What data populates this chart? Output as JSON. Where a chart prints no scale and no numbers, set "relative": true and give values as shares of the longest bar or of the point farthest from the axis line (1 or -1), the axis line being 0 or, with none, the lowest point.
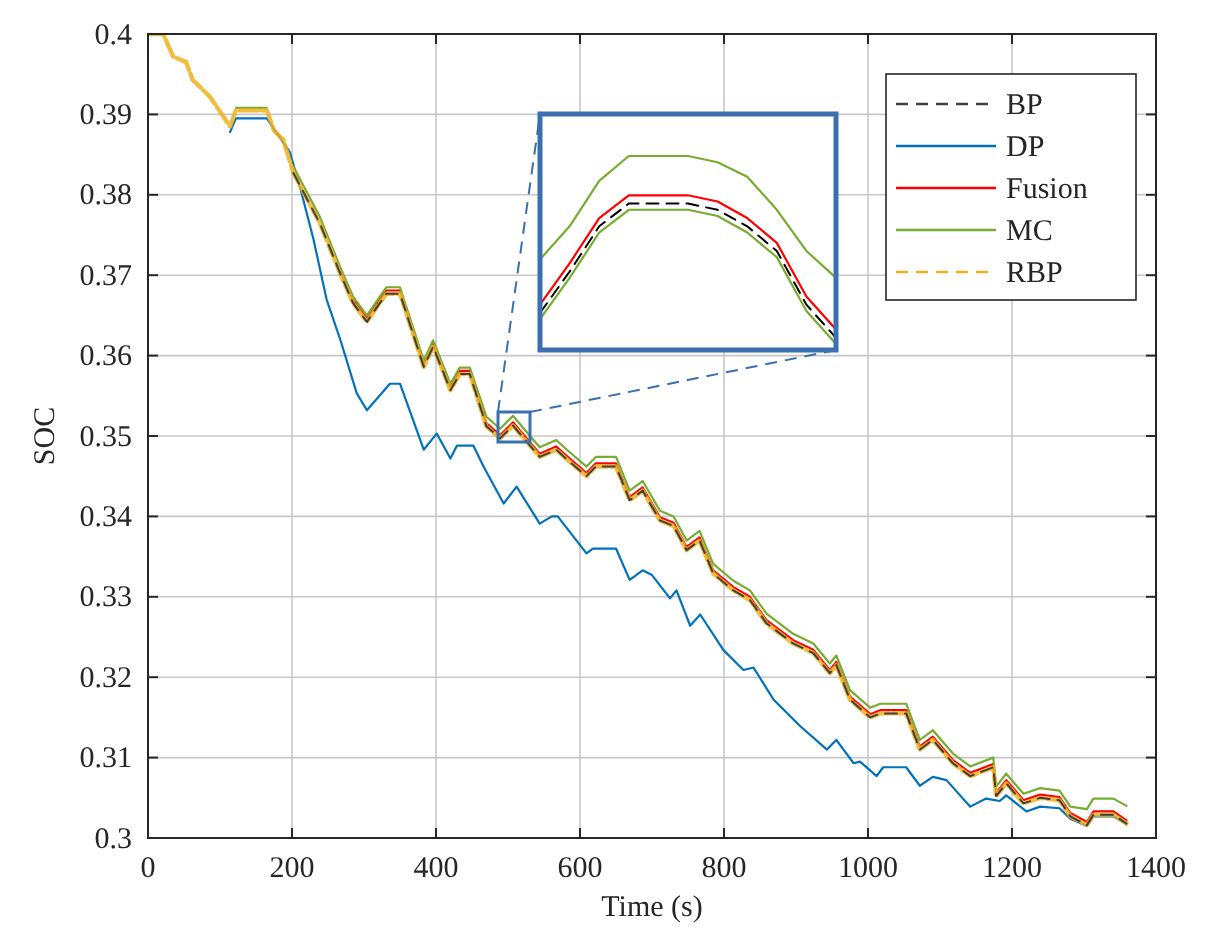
{
  "chart_data": [
    {
      "type": "line",
      "xlabel": "Time (s)",
      "ylabel": "SOC",
      "xlim": [
        0,
        1400
      ],
      "ylim": [
        0.3,
        0.4
      ],
      "xticks": [
        0,
        200,
        400,
        600,
        800,
        1000,
        1200,
        1400
      ],
      "yticks": [
        0.3,
        0.31,
        0.32,
        0.33,
        0.34,
        0.35,
        0.36,
        0.37,
        0.38,
        0.39,
        0.4
      ],
      "grid": true,
      "legend": "top right",
      "x": [
        0,
        21,
        35,
        53,
        62,
        86,
        114,
        122,
        165,
        175,
        188,
        202,
        239,
        267,
        285,
        304,
        331,
        350,
        383,
        396,
        420,
        433,
        447,
        470,
        489,
        507,
        526,
        544,
        567,
        583,
        609,
        622,
        650,
        669,
        687,
        711,
        730,
        748,
        766,
        785,
        813,
        836,
        859,
        896,
        924,
        947,
        956,
        975,
        1003,
        1017,
        1053,
        1072,
        1090,
        1118,
        1142,
        1174,
        1178,
        1192,
        1216,
        1239,
        1266,
        1281,
        1304,
        1313,
        1341,
        1359
      ],
      "series": [
        {
          "name": "BP",
          "color": "#404040",
          "line_style": "dashed",
          "values": [
            null,
            null,
            null,
            null,
            null,
            null,
            null,
            null,
            null,
            null,
            null,
            0.3827,
            0.3764,
            0.3702,
            0.3665,
            0.3642,
            0.3677,
            0.3677,
            0.3586,
            0.3611,
            0.3557,
            0.3577,
            0.3577,
            0.3512,
            0.3497,
            0.3513,
            0.3493,
            0.3474,
            0.3483,
            0.347,
            0.345,
            0.3462,
            0.3462,
            0.342,
            0.3432,
            0.3395,
            0.3388,
            0.3358,
            0.337,
            0.3329,
            0.3308,
            0.3296,
            0.3267,
            0.3242,
            0.323,
            0.3205,
            0.3215,
            0.3172,
            0.315,
            0.3155,
            0.3155,
            0.311,
            0.3122,
            0.3093,
            0.3077,
            0.3088,
            0.3052,
            0.3068,
            0.3043,
            0.305,
            0.3047,
            0.3027,
            0.3016,
            0.3029,
            0.3029,
            0.3018
          ]
        },
        {
          "name": "DP",
          "color": "#0072bd",
          "line_style": "solid",
          "x": [
            114,
            122,
            165,
            197,
            211,
            230,
            248,
            267,
            290,
            304,
            336,
            350,
            383,
            401,
            420,
            429,
            452,
            466,
            494,
            512,
            544,
            561,
            569,
            609,
            618,
            650,
            669,
            687,
            700,
            725,
            734,
            753,
            767,
            799,
            827,
            841,
            869,
            906,
            943,
            956,
            980,
            989,
            1012,
            1021,
            1053,
            1072,
            1090,
            1109,
            1142,
            1164,
            1183,
            1192,
            1220,
            1239,
            1266,
            1281,
            1304,
            1313,
            1341,
            1359
          ],
          "values": [
            0.3878,
            0.3895,
            0.3895,
            0.3853,
            0.381,
            0.3744,
            0.367,
            0.362,
            0.3553,
            0.3532,
            0.3565,
            0.3565,
            0.3483,
            0.3503,
            0.3472,
            0.3488,
            0.3488,
            0.3462,
            0.3416,
            0.3437,
            0.3391,
            0.34,
            0.34,
            0.3354,
            0.336,
            0.336,
            0.3321,
            0.3333,
            0.3327,
            0.3298,
            0.3308,
            0.3264,
            0.3278,
            0.3234,
            0.3209,
            0.3212,
            0.3172,
            0.3139,
            0.311,
            0.3122,
            0.3093,
            0.3095,
            0.3077,
            0.3088,
            0.3088,
            0.3065,
            0.3076,
            0.3072,
            0.3039,
            0.3049,
            0.3046,
            0.3053,
            0.3033,
            0.3039,
            0.3037,
            0.3024,
            0.3015,
            0.3027,
            0.3027,
            0.3017
          ]
        },
        {
          "name": "Fusion",
          "color": "#ff0000",
          "line_style": "solid",
          "values": [
            null,
            null,
            null,
            null,
            null,
            null,
            null,
            null,
            null,
            null,
            null,
            null,
            null,
            0.3706,
            0.3669,
            0.3646,
            0.3681,
            0.3681,
            0.359,
            0.3615,
            0.3561,
            0.3581,
            0.3581,
            0.3516,
            0.3501,
            0.3517,
            0.3497,
            0.3478,
            0.3487,
            0.3474,
            0.3454,
            0.3466,
            0.3466,
            0.3424,
            0.3436,
            0.3399,
            0.3392,
            0.3362,
            0.3374,
            0.3333,
            0.3312,
            0.33,
            0.3271,
            0.3246,
            0.3234,
            0.3209,
            0.3219,
            0.3176,
            0.3154,
            0.3159,
            0.3159,
            0.3114,
            0.3126,
            0.3097,
            0.3081,
            0.3092,
            0.3056,
            0.3072,
            0.3047,
            0.3054,
            0.3051,
            0.3031,
            0.302,
            0.3033,
            0.3033,
            0.3022
          ]
        },
        {
          "name": "MC",
          "color": "#77ac30",
          "line_style": "solid",
          "values": [
            null,
            null,
            null,
            null,
            null,
            null,
            null,
            0.3908,
            0.3908,
            null,
            null,
            0.3835,
            0.3772,
            0.371,
            0.3673,
            0.365,
            0.3685,
            0.3685,
            0.3594,
            0.3619,
            0.3565,
            0.3585,
            0.3585,
            0.3524,
            0.3509,
            0.3525,
            0.3505,
            0.3486,
            0.3495,
            0.3482,
            0.3462,
            0.3474,
            0.3474,
            0.3432,
            0.3444,
            0.3407,
            0.34,
            0.337,
            0.3382,
            0.3341,
            0.332,
            0.3308,
            0.3279,
            0.3254,
            0.3242,
            0.3217,
            0.3227,
            0.3184,
            0.3162,
            0.3167,
            0.3167,
            0.3122,
            0.3134,
            0.3105,
            0.3089,
            0.31,
            0.3064,
            0.308,
            0.3055,
            0.3062,
            0.3059,
            0.3039,
            0.3036,
            0.3049,
            0.3049,
            0.304
          ]
        },
        {
          "name": "RBP",
          "color": "#edb120",
          "line_style": "dashed",
          "values": [
            0.4,
            0.4,
            0.3972,
            0.3965,
            0.3943,
            0.3922,
            0.3885,
            0.3905,
            0.3905,
            0.388,
            0.3868,
            0.3827,
            0.3764,
            0.3702,
            0.3665,
            0.3642,
            0.3677,
            0.3677,
            0.3586,
            0.3611,
            0.3557,
            0.3577,
            0.3577,
            0.3512,
            0.3497,
            0.3513,
            0.3493,
            0.3474,
            0.3483,
            0.347,
            0.345,
            0.3462,
            0.3462,
            0.342,
            0.3432,
            0.3395,
            0.3388,
            0.3358,
            0.337,
            0.3329,
            0.3308,
            0.3296,
            0.3267,
            0.3242,
            0.323,
            0.3205,
            0.3215,
            0.3172,
            0.315,
            0.3155,
            0.3155,
            0.311,
            0.3122,
            0.3093,
            0.3077,
            0.3088,
            0.3052,
            0.3068,
            0.3043,
            0.305,
            0.3047,
            0.3027,
            0.3016,
            0.3029,
            0.3029,
            0.3018
          ]
        }
      ]
    },
    {
      "type": "line",
      "relative": true,
      "categories": [
        null,
        null,
        null,
        null,
        null,
        null,
        null,
        null,
        null,
        null,
        null
      ],
      "series": [
        {
          "color": "#77ac30",
          "line_style": "solid",
          "values": [
            0.45,
            0.626,
            0.868,
            1,
            1,
            1,
            0.967,
            0.89,
            0.714,
            0.495,
            0.352
          ]
        },
        {
          "color": "#ff0000",
          "line_style": "solid",
          "values": [
            0.209,
            0.429,
            0.67,
            0.791,
            0.791,
            0.791,
            0.758,
            0.67,
            0.538,
            0.253,
            0.077
          ]
        },
        {
          "color": "#77ac30",
          "line_style": "solid",
          "values": [
            0.132,
            0.352,
            0.593,
            0.714,
            0.714,
            0.714,
            0.681,
            0.593,
            0.462,
            0.176,
            0
          ]
        },
        {
          "color": "#000000",
          "line_style": "dashed",
          "values": [
            0.165,
            0.385,
            0.626,
            0.747,
            0.747,
            0.747,
            0.714,
            0.626,
            0.495,
            0.209,
            0.033
          ]
        }
      ]
    }
  ]
}
